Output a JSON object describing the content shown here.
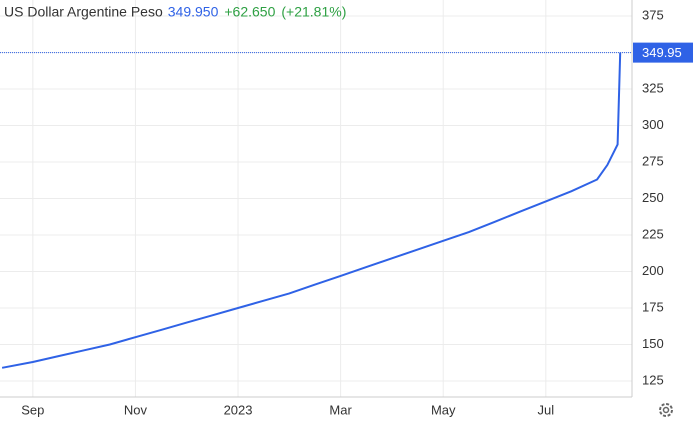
{
  "chart_data": {
    "type": "line",
    "title": "US Dollar Argentine Peso",
    "last": "349.950",
    "change": "+62.650",
    "change_pct": "(+21.81%)",
    "current_price_label": "349.95",
    "x": [
      -0.6,
      0,
      0.5,
      1,
      1.5,
      2,
      2.5,
      3,
      3.5,
      4,
      4.5,
      5,
      5.5,
      6,
      6.5,
      7,
      7.5,
      8,
      8.5,
      9,
      9.5,
      10,
      10.5,
      11,
      11.2,
      11.4,
      11.45
    ],
    "values": [
      134,
      138,
      142,
      146,
      150,
      155,
      160,
      165,
      170,
      175,
      180,
      185,
      191,
      197,
      203,
      209,
      215,
      221,
      227,
      234,
      241,
      248,
      255,
      263,
      273,
      287,
      349.95
    ],
    "color": "#2f62e6",
    "xlim": [
      -0.64,
      11.68
    ],
    "xticks": [
      {
        "value": 0,
        "label": "Sep"
      },
      {
        "value": 2,
        "label": "Nov"
      },
      {
        "value": 4,
        "label": "2023"
      },
      {
        "value": 6,
        "label": "Mar"
      },
      {
        "value": 8,
        "label": "May"
      },
      {
        "value": 10,
        "label": "Jul"
      }
    ],
    "ylim": [
      114,
      386
    ],
    "yticks": [
      125,
      150,
      175,
      200,
      225,
      250,
      275,
      300,
      325,
      350,
      375
    ],
    "grid": true
  }
}
